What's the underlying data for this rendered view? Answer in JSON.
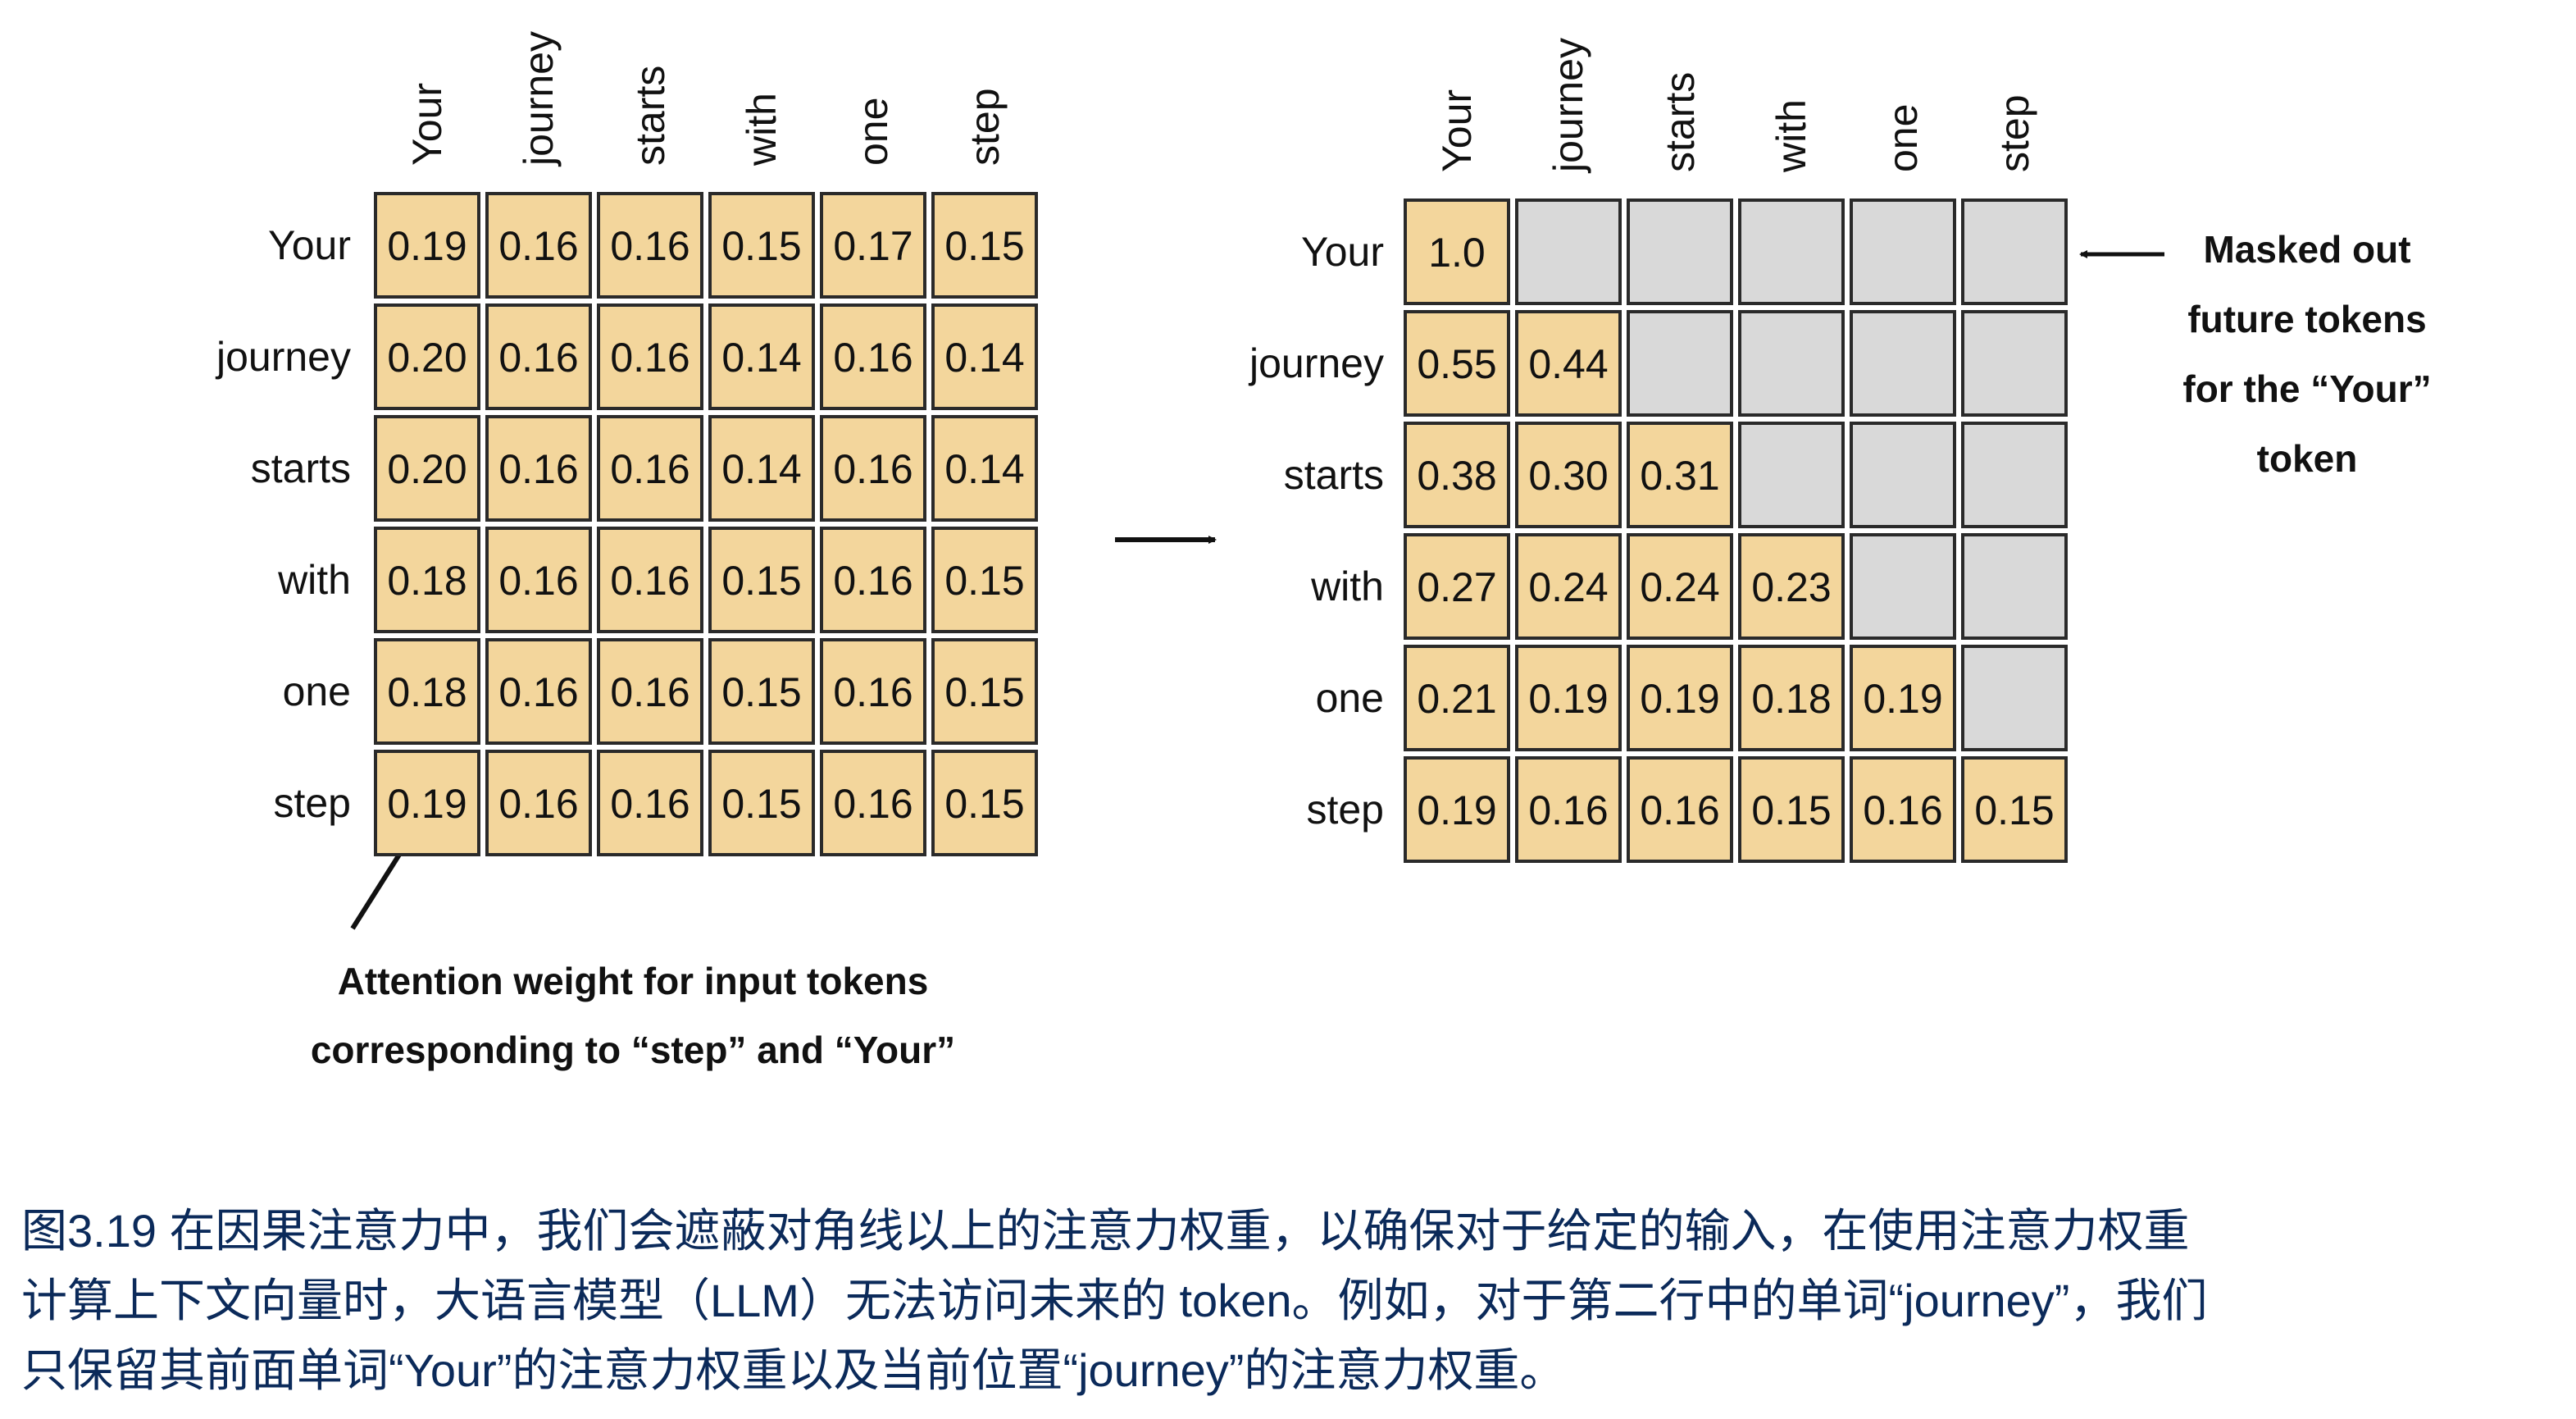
{
  "left_matrix": {
    "columns": [
      "Your",
      "journey",
      "starts",
      "with",
      "one",
      "step"
    ],
    "rows": [
      "Your",
      "journey",
      "starts",
      "with",
      "one",
      "step"
    ],
    "values": [
      [
        "0.19",
        "0.16",
        "0.16",
        "0.15",
        "0.17",
        "0.15"
      ],
      [
        "0.20",
        "0.16",
        "0.16",
        "0.14",
        "0.16",
        "0.14"
      ],
      [
        "0.20",
        "0.16",
        "0.16",
        "0.14",
        "0.16",
        "0.14"
      ],
      [
        "0.18",
        "0.16",
        "0.16",
        "0.15",
        "0.16",
        "0.15"
      ],
      [
        "0.18",
        "0.16",
        "0.16",
        "0.15",
        "0.16",
        "0.15"
      ],
      [
        "0.19",
        "0.16",
        "0.16",
        "0.15",
        "0.16",
        "0.15"
      ]
    ]
  },
  "right_matrix": {
    "columns": [
      "Your",
      "journey",
      "starts",
      "with",
      "one",
      "step"
    ],
    "rows": [
      "Your",
      "journey",
      "starts",
      "with",
      "one",
      "step"
    ],
    "values": [
      [
        "1.0"
      ],
      [
        "0.55",
        "0.44"
      ],
      [
        "0.38",
        "0.30",
        "0.31"
      ],
      [
        "0.27",
        "0.24",
        "0.24",
        "0.23"
      ],
      [
        "0.21",
        "0.19",
        "0.19",
        "0.18",
        "0.19"
      ],
      [
        "0.19",
        "0.16",
        "0.16",
        "0.15",
        "0.16",
        "0.15"
      ]
    ]
  },
  "annotations": {
    "masked": [
      "Masked out",
      "future tokens",
      "for the “Your”",
      "token"
    ],
    "attention": [
      "Attention weight for input tokens",
      "corresponding to “step” and “Your”"
    ]
  },
  "caption": [
    "图3.19 在因果注意力中，我们会遮蔽对角线以上的注意力权重，以确保对于给定的输入，在使用注意力权重",
    "计算上下文向量时，大语言模型（LLM）无法访问未来的 token。例如，对于第二行中的单词“journey”，我们",
    "只保留其前面单词“Your”的注意力权重以及当前位置“journey”的注意力权重。"
  ]
}
